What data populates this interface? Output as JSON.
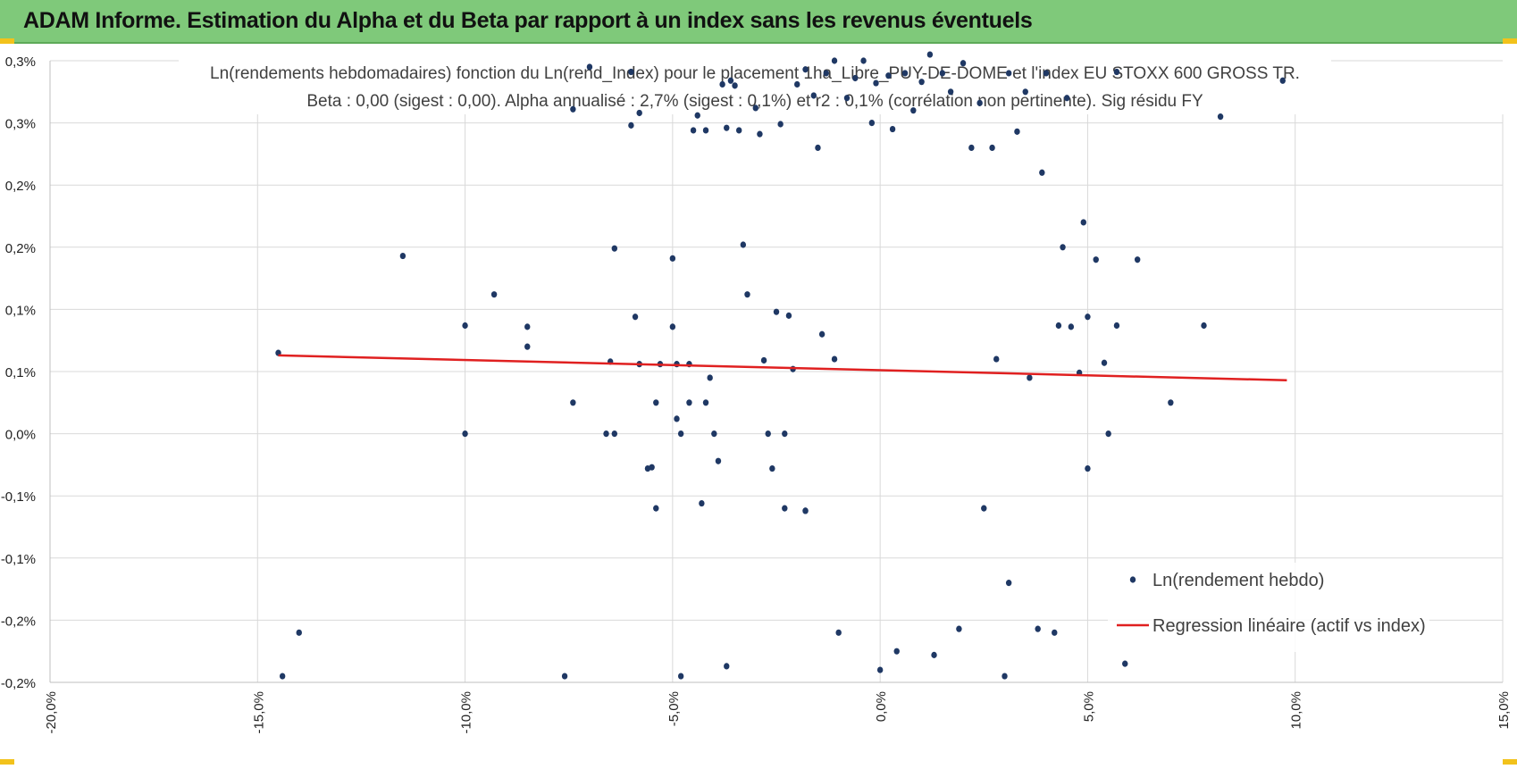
{
  "header": {
    "title": "ADAM Informe. Estimation du Alpha et du Beta par rapport à un index sans les revenus éventuels"
  },
  "colors": {
    "header_bg": "#7fc97a",
    "points": "#1f3864",
    "regression": "#e02020",
    "grid": "#d9d9d9",
    "corner_marker": "#f2c21b"
  },
  "chart_data": {
    "type": "scatter",
    "title": "Ln(rendements hebdomadaires) fonction du Ln(rend_Index) pour le placement 1ha_Libre_PUY-DE-DOME et l'index EU STOXX 600 GROSS TR.",
    "subtitle": "Beta : 0,00 (sigest : 0,00). Alpha annualisé : 2,7% (sigest : 0,1%) et r2 : 0,1% (corrélation non pertinente). Sig résidu FY",
    "xlim": [
      -0.2,
      0.15
    ],
    "ylim": [
      -0.002,
      0.003
    ],
    "x_ticks": [
      -0.2,
      -0.15,
      -0.1,
      -0.05,
      0.0,
      0.05,
      0.1,
      0.15
    ],
    "x_tick_labels": [
      "-20,0%",
      "-15,0%",
      "-10,0%",
      "-5,0%",
      "0,0%",
      "5,0%",
      "10,0%",
      "15,0%"
    ],
    "y_ticks": [
      0.003,
      0.0025,
      0.002,
      0.0015,
      0.001,
      0.0005,
      0.0,
      -0.0005,
      -0.001,
      -0.0015,
      -0.002
    ],
    "y_tick_labels": [
      "0,3%",
      "0,3%",
      "0,2%",
      "0,2%",
      "0,1%",
      "0,1%",
      "0,0%",
      "-0,1%",
      "-0,1%",
      "-0,2%",
      "-0,2%"
    ],
    "grid": true,
    "legend_position": "bottom-right",
    "series": [
      {
        "name": "Ln(rendement hebdo)",
        "kind": "points",
        "color": "#1f3864",
        "points": [
          [
            -0.145,
            0.00065
          ],
          [
            -0.14,
            -0.0016
          ],
          [
            -0.144,
            -0.00195
          ],
          [
            -0.115,
            0.00143
          ],
          [
            -0.093,
            0.00112
          ],
          [
            -0.1,
            0.00087
          ],
          [
            -0.1,
            0.0
          ],
          [
            -0.085,
            0.00086
          ],
          [
            -0.085,
            0.0007
          ],
          [
            -0.074,
            0.00261
          ],
          [
            -0.074,
            0.00025
          ],
          [
            -0.076,
            -0.00195
          ],
          [
            -0.07,
            0.00295
          ],
          [
            -0.064,
            0.00149
          ],
          [
            -0.065,
            0.00058
          ],
          [
            -0.064,
            0.0
          ],
          [
            -0.066,
            0.0
          ],
          [
            -0.06,
            0.00291
          ],
          [
            -0.06,
            0.00248
          ],
          [
            -0.059,
            0.00094
          ],
          [
            -0.058,
            0.00258
          ],
          [
            -0.058,
            0.00056
          ],
          [
            -0.056,
            -0.00028
          ],
          [
            -0.055,
            -0.00027
          ],
          [
            -0.054,
            -0.0006
          ],
          [
            -0.054,
            0.00025
          ],
          [
            -0.053,
            0.00056
          ],
          [
            -0.05,
            0.00141
          ],
          [
            -0.05,
            0.00086
          ],
          [
            -0.049,
            0.00056
          ],
          [
            -0.049,
            0.00012
          ],
          [
            -0.048,
            0.0
          ],
          [
            -0.048,
            -0.00195
          ],
          [
            -0.046,
            0.00056
          ],
          [
            -0.046,
            0.00025
          ],
          [
            -0.045,
            0.00244
          ],
          [
            -0.044,
            0.00256
          ],
          [
            -0.043,
            -0.00056
          ],
          [
            -0.042,
            0.00244
          ],
          [
            -0.042,
            0.00025
          ],
          [
            -0.041,
            0.00045
          ],
          [
            -0.04,
            0.0
          ],
          [
            -0.039,
            -0.00022
          ],
          [
            -0.038,
            0.00281
          ],
          [
            -0.037,
            -0.00187
          ],
          [
            -0.037,
            0.00246
          ],
          [
            -0.036,
            0.00284
          ],
          [
            -0.035,
            0.0028
          ],
          [
            -0.034,
            0.00244
          ],
          [
            -0.033,
            0.00152
          ],
          [
            -0.032,
            0.00112
          ],
          [
            -0.03,
            0.00262
          ],
          [
            -0.029,
            0.00241
          ],
          [
            -0.028,
            0.00059
          ],
          [
            -0.027,
            0.0
          ],
          [
            -0.026,
            -0.00028
          ],
          [
            -0.025,
            0.00098
          ],
          [
            -0.024,
            0.00249
          ],
          [
            -0.023,
            -0.0006
          ],
          [
            -0.023,
            0.0
          ],
          [
            -0.022,
            0.00095
          ],
          [
            -0.021,
            0.00052
          ],
          [
            -0.02,
            0.00281
          ],
          [
            -0.018,
            0.00293
          ],
          [
            -0.018,
            -0.00062
          ],
          [
            -0.018,
            -0.00062
          ],
          [
            -0.016,
            0.00272
          ],
          [
            -0.015,
            0.0023
          ],
          [
            -0.014,
            0.0008
          ],
          [
            -0.013,
            0.0029
          ],
          [
            -0.011,
            0.003
          ],
          [
            -0.011,
            0.0006
          ],
          [
            -0.01,
            -0.0016
          ],
          [
            -0.008,
            0.0027
          ],
          [
            -0.006,
            0.00286
          ],
          [
            -0.004,
            0.003
          ],
          [
            -0.002,
            0.0025
          ],
          [
            -0.001,
            0.00282
          ],
          [
            0.0,
            -0.0019
          ],
          [
            0.002,
            0.00288
          ],
          [
            0.003,
            0.00245
          ],
          [
            0.004,
            -0.00175
          ],
          [
            0.006,
            0.0029
          ],
          [
            0.008,
            0.0026
          ],
          [
            0.01,
            0.00283
          ],
          [
            0.012,
            0.00305
          ],
          [
            0.013,
            -0.00178
          ],
          [
            0.015,
            0.0029
          ],
          [
            0.017,
            0.00275
          ],
          [
            0.019,
            -0.00157
          ],
          [
            0.02,
            0.00298
          ],
          [
            0.022,
            0.0023
          ],
          [
            0.024,
            0.00266
          ],
          [
            0.025,
            -0.0006
          ],
          [
            0.027,
            0.0023
          ],
          [
            0.028,
            0.0006
          ],
          [
            0.03,
            -0.00195
          ],
          [
            0.031,
            0.0029
          ],
          [
            0.031,
            -0.0012
          ],
          [
            0.033,
            0.00243
          ],
          [
            0.035,
            0.00275
          ],
          [
            0.036,
            0.00045
          ],
          [
            0.038,
            -0.00157
          ],
          [
            0.039,
            0.0021
          ],
          [
            0.04,
            0.0029
          ],
          [
            0.042,
            -0.0016
          ],
          [
            0.043,
            0.00087
          ],
          [
            0.044,
            0.0015
          ],
          [
            0.045,
            0.0027
          ],
          [
            0.046,
            0.00086
          ],
          [
            0.048,
            0.00049
          ],
          [
            0.049,
            0.0017
          ],
          [
            0.05,
            0.00094
          ],
          [
            0.05,
            -0.00028
          ],
          [
            0.052,
            0.0014
          ],
          [
            0.054,
            0.00057
          ],
          [
            0.055,
            0.0
          ],
          [
            0.057,
            0.00087
          ],
          [
            0.057,
            0.00291
          ],
          [
            0.059,
            -0.00185
          ],
          [
            0.062,
            0.0014
          ],
          [
            0.07,
            0.00025
          ],
          [
            0.078,
            0.00087
          ],
          [
            0.082,
            0.00255
          ],
          [
            0.097,
            0.00284
          ]
        ]
      },
      {
        "name": "Regression linéaire (actif vs index)",
        "kind": "line",
        "color": "#e02020",
        "points": [
          [
            -0.145,
            0.00063
          ],
          [
            0.098,
            0.00043
          ]
        ]
      }
    ]
  }
}
